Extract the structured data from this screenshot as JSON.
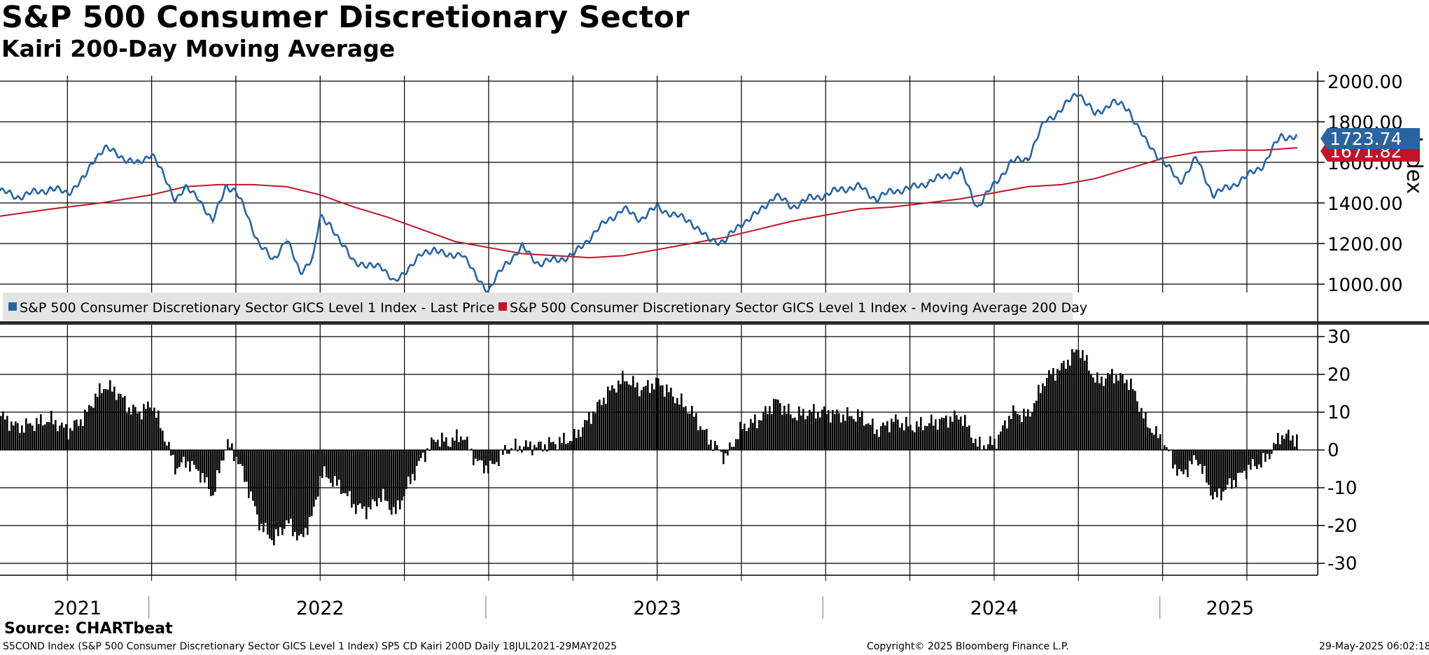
{
  "header": {
    "title": "S&P 500 Consumer Discretionary Sector",
    "subtitle": "Kairi 200-Day Moving Average"
  },
  "legend": {
    "price_label": "S&P 500 Consumer Discretionary Sector GICS Level 1 Index - Last Price",
    "ma_label": "S&P 500 Consumer Discretionary Sector GICS Level 1 Index - Moving Average 200 Day"
  },
  "footer": {
    "source": "Source: CHARTbeat",
    "info": "S5COND Index (S&P 500 Consumer Discretionary Sector GICS Level 1 Index) SP5 CD Kairi 200D  Daily 18JUL2021-29MAY2025",
    "copyright": "Copyright© 2025 Bloomberg Finance L.P.",
    "timestamp": "29-May-2025 06:02:18"
  },
  "colors": {
    "price": "#2a64a0",
    "ma": "#c0142a",
    "kairi": "#000000",
    "grid": "#000000"
  },
  "chart_data": [
    {
      "type": "line",
      "title": "S&P 500 Consumer Discretionary Sector",
      "ylabel": "Index",
      "ylim": [
        900,
        2050
      ],
      "yticks": [
        1000,
        1200,
        1400,
        1600,
        1800,
        2000
      ],
      "ytick_labels": [
        "1000.00",
        "1200.00",
        "1400.00",
        "1600.00",
        "1800.00",
        "2000.00"
      ],
      "x_unit": "year (decimal)",
      "xlim": [
        2021.55,
        2025.46
      ],
      "last_value_labels": {
        "price": "1723.74",
        "ma": "1671.82"
      },
      "series": [
        {
          "name": "S&P 500 Consumer Discretionary Sector GICS Level 1 Index - Last Price",
          "x": [
            2021.55,
            2021.6,
            2021.65,
            2021.7,
            2021.75,
            2021.8,
            2021.83,
            2021.86,
            2021.9,
            2021.93,
            2021.96,
            2022.0,
            2022.03,
            2022.07,
            2022.1,
            2022.14,
            2022.18,
            2022.22,
            2022.25,
            2022.28,
            2022.32,
            2022.36,
            2022.4,
            2022.44,
            2022.48,
            2022.5,
            2022.53,
            2022.56,
            2022.6,
            2022.64,
            2022.68,
            2022.72,
            2022.76,
            2022.8,
            2022.84,
            2022.88,
            2022.92,
            2022.96,
            2023.0,
            2023.05,
            2023.1,
            2023.15,
            2023.2,
            2023.25,
            2023.3,
            2023.35,
            2023.4,
            2023.45,
            2023.5,
            2023.55,
            2023.6,
            2023.65,
            2023.7,
            2023.75,
            2023.8,
            2023.85,
            2023.9,
            2023.95,
            2024.0,
            2024.05,
            2024.1,
            2024.15,
            2024.2,
            2024.25,
            2024.3,
            2024.35,
            2024.4,
            2024.45,
            2024.5,
            2024.55,
            2024.6,
            2024.65,
            2024.7,
            2024.75,
            2024.8,
            2024.85,
            2024.9,
            2024.95,
            2025.0,
            2025.05,
            2025.1,
            2025.15,
            2025.2,
            2025.25,
            2025.3,
            2025.35,
            2025.4
          ],
          "values": [
            1460,
            1430,
            1450,
            1470,
            1450,
            1520,
            1620,
            1670,
            1640,
            1610,
            1590,
            1650,
            1550,
            1420,
            1470,
            1430,
            1300,
            1490,
            1450,
            1360,
            1190,
            1120,
            1220,
            1060,
            1130,
            1330,
            1300,
            1200,
            1120,
            1080,
            1100,
            1000,
            1080,
            1140,
            1180,
            1130,
            1160,
            1040,
            970,
            1100,
            1180,
            1100,
            1120,
            1140,
            1230,
            1310,
            1370,
            1320,
            1380,
            1340,
            1310,
            1220,
            1210,
            1300,
            1350,
            1440,
            1380,
            1420,
            1440,
            1470,
            1480,
            1420,
            1460,
            1470,
            1500,
            1530,
            1560,
            1380,
            1490,
            1600,
            1620,
            1800,
            1860,
            1950,
            1830,
            1900,
            1860,
            1700,
            1610,
            1500,
            1620,
            1440,
            1480,
            1530,
            1590,
            1730,
            1724
          ]
        },
        {
          "name": "S&P 500 Consumer Discretionary Sector GICS Level 1 Index - Moving Average 200 Day",
          "x": [
            2021.55,
            2021.7,
            2021.85,
            2022.0,
            2022.1,
            2022.2,
            2022.3,
            2022.4,
            2022.5,
            2022.6,
            2022.7,
            2022.8,
            2022.9,
            2023.0,
            2023.1,
            2023.2,
            2023.3,
            2023.4,
            2023.5,
            2023.6,
            2023.7,
            2023.8,
            2023.9,
            2024.0,
            2024.1,
            2024.2,
            2024.3,
            2024.4,
            2024.5,
            2024.6,
            2024.7,
            2024.8,
            2024.9,
            2025.0,
            2025.1,
            2025.2,
            2025.3,
            2025.4
          ],
          "values": [
            1335,
            1370,
            1400,
            1440,
            1480,
            1490,
            1490,
            1480,
            1440,
            1380,
            1330,
            1270,
            1210,
            1180,
            1150,
            1140,
            1130,
            1140,
            1170,
            1200,
            1230,
            1270,
            1310,
            1340,
            1370,
            1380,
            1400,
            1420,
            1450,
            1480,
            1490,
            1520,
            1570,
            1620,
            1650,
            1660,
            1660,
            1672
          ]
        }
      ]
    },
    {
      "type": "bar",
      "title": "Kairi 200-Day Moving Average",
      "ylim": [
        -33,
        32
      ],
      "yticks": [
        30,
        20,
        10,
        0,
        -10,
        -20,
        -30
      ],
      "ytick_labels": [
        "30",
        "20",
        "10",
        "0",
        "-10",
        "-20",
        "-30"
      ],
      "x_unit": "year (decimal)",
      "x": [
        2021.55,
        2021.6,
        2021.65,
        2021.7,
        2021.75,
        2021.8,
        2021.83,
        2021.86,
        2021.9,
        2021.93,
        2021.96,
        2022.0,
        2022.03,
        2022.07,
        2022.1,
        2022.14,
        2022.18,
        2022.22,
        2022.25,
        2022.28,
        2022.32,
        2022.36,
        2022.4,
        2022.44,
        2022.48,
        2022.5,
        2022.53,
        2022.56,
        2022.6,
        2022.64,
        2022.68,
        2022.72,
        2022.76,
        2022.8,
        2022.84,
        2022.88,
        2022.92,
        2022.96,
        2023.0,
        2023.05,
        2023.1,
        2023.15,
        2023.2,
        2023.25,
        2023.3,
        2023.35,
        2023.4,
        2023.45,
        2023.5,
        2023.55,
        2023.6,
        2023.65,
        2023.7,
        2023.75,
        2023.8,
        2023.85,
        2023.9,
        2023.95,
        2024.0,
        2024.05,
        2024.1,
        2024.15,
        2024.2,
        2024.25,
        2024.3,
        2024.35,
        2024.4,
        2024.45,
        2024.5,
        2024.55,
        2024.6,
        2024.65,
        2024.7,
        2024.75,
        2024.8,
        2024.85,
        2024.9,
        2024.95,
        2025.0,
        2025.05,
        2025.1,
        2025.15,
        2025.2,
        2025.25,
        2025.3,
        2025.35,
        2025.4
      ],
      "values": [
        9,
        6,
        7,
        8,
        5,
        9,
        14,
        17,
        15,
        11,
        10,
        12,
        5,
        -5,
        -3,
        -6,
        -12,
        2,
        -2,
        -9,
        -20,
        -24,
        -19,
        -24,
        -16,
        -6,
        -8,
        -10,
        -15,
        -16,
        -12,
        -17,
        -9,
        -2,
        3,
        2,
        4,
        -3,
        -5,
        0,
        1,
        1,
        2,
        3,
        9,
        15,
        19,
        16,
        18,
        14,
        10,
        3,
        -2,
        6,
        8,
        13,
        9,
        10,
        10,
        9,
        9,
        5,
        8,
        6,
        7,
        8,
        9,
        1,
        2,
        10,
        9,
        19,
        22,
        27,
        18,
        20,
        18,
        7,
        2,
        -7,
        -2,
        -13,
        -9,
        -5,
        -3,
        4,
        3
      ]
    }
  ],
  "x_axis": {
    "years": [
      "2021",
      "2022",
      "2023",
      "2024",
      "2025"
    ]
  }
}
